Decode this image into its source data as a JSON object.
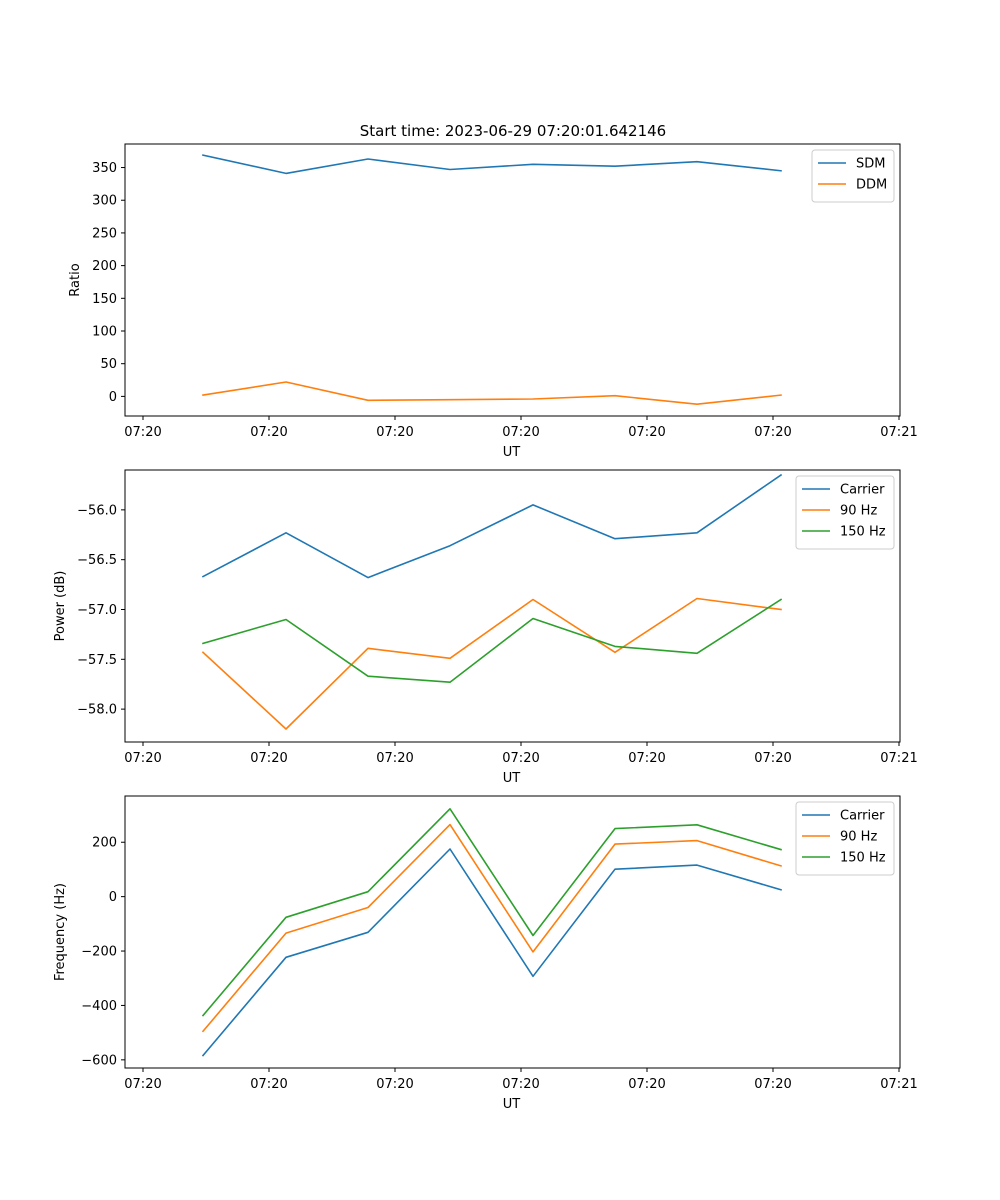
{
  "title": "Start time: 2023-06-29 07:20:01.642146",
  "chart_data": [
    {
      "type": "line",
      "xlabel": "UT",
      "ylabel": "Ratio",
      "x_tick_labels": [
        "07:20",
        "07:20",
        "07:20",
        "07:20",
        "07:20",
        "07:20",
        "07:21"
      ],
      "y_ticks": [
        0,
        50,
        100,
        150,
        200,
        250,
        300,
        350
      ],
      "ylim": [
        -30,
        386
      ],
      "legend_position": "upper-right",
      "series": [
        {
          "name": "SDM",
          "color": "#1f77b4",
          "values": [
            369,
            341,
            363,
            347,
            355,
            352,
            359,
            345
          ]
        },
        {
          "name": "DDM",
          "color": "#ff7f0e",
          "values": [
            2,
            22,
            -6,
            -5,
            -4,
            1,
            -12,
            2
          ]
        }
      ]
    },
    {
      "type": "line",
      "xlabel": "UT",
      "ylabel": "Power (dB)",
      "x_tick_labels": [
        "07:20",
        "07:20",
        "07:20",
        "07:20",
        "07:20",
        "07:20",
        "07:21"
      ],
      "y_ticks": [
        -58.0,
        -57.5,
        -57.0,
        -56.5,
        -56.0
      ],
      "y_tick_labels": [
        "−58.0",
        "−57.5",
        "−57.0",
        "−56.5",
        "−56.0"
      ],
      "ylim": [
        -58.33,
        -55.6
      ],
      "legend_position": "upper-right",
      "series": [
        {
          "name": "Carrier",
          "color": "#1f77b4",
          "values": [
            -56.67,
            -56.23,
            -56.68,
            -56.36,
            -55.95,
            -56.29,
            -56.23,
            -55.65
          ]
        },
        {
          "name": "90 Hz",
          "color": "#ff7f0e",
          "values": [
            -57.43,
            -58.2,
            -57.39,
            -57.49,
            -56.9,
            -57.43,
            -56.89,
            -57.0
          ]
        },
        {
          "name": "150 Hz",
          "color": "#2ca02c",
          "values": [
            -57.34,
            -57.1,
            -57.67,
            -57.73,
            -57.09,
            -57.37,
            -57.44,
            -56.9
          ]
        }
      ]
    },
    {
      "type": "line",
      "xlabel": "UT",
      "ylabel": "Frequency (Hz)",
      "x_tick_labels": [
        "07:20",
        "07:20",
        "07:20",
        "07:20",
        "07:20",
        "07:20",
        "07:21"
      ],
      "y_ticks": [
        -600,
        -400,
        -200,
        0,
        200
      ],
      "y_tick_labels": [
        "−600",
        "−400",
        "−200",
        "0",
        "200"
      ],
      "ylim": [
        -630,
        370
      ],
      "legend_position": "upper-right",
      "series": [
        {
          "name": "Carrier",
          "color": "#1f77b4",
          "values": [
            -584,
            -223,
            -131,
            175,
            -293,
            101,
            116,
            25
          ]
        },
        {
          "name": "90 Hz",
          "color": "#ff7f0e",
          "values": [
            -495,
            -134,
            -40,
            265,
            -203,
            193,
            206,
            113
          ]
        },
        {
          "name": "150 Hz",
          "color": "#2ca02c",
          "values": [
            -437,
            -76,
            18,
            323,
            -143,
            250,
            264,
            173
          ]
        }
      ]
    }
  ]
}
